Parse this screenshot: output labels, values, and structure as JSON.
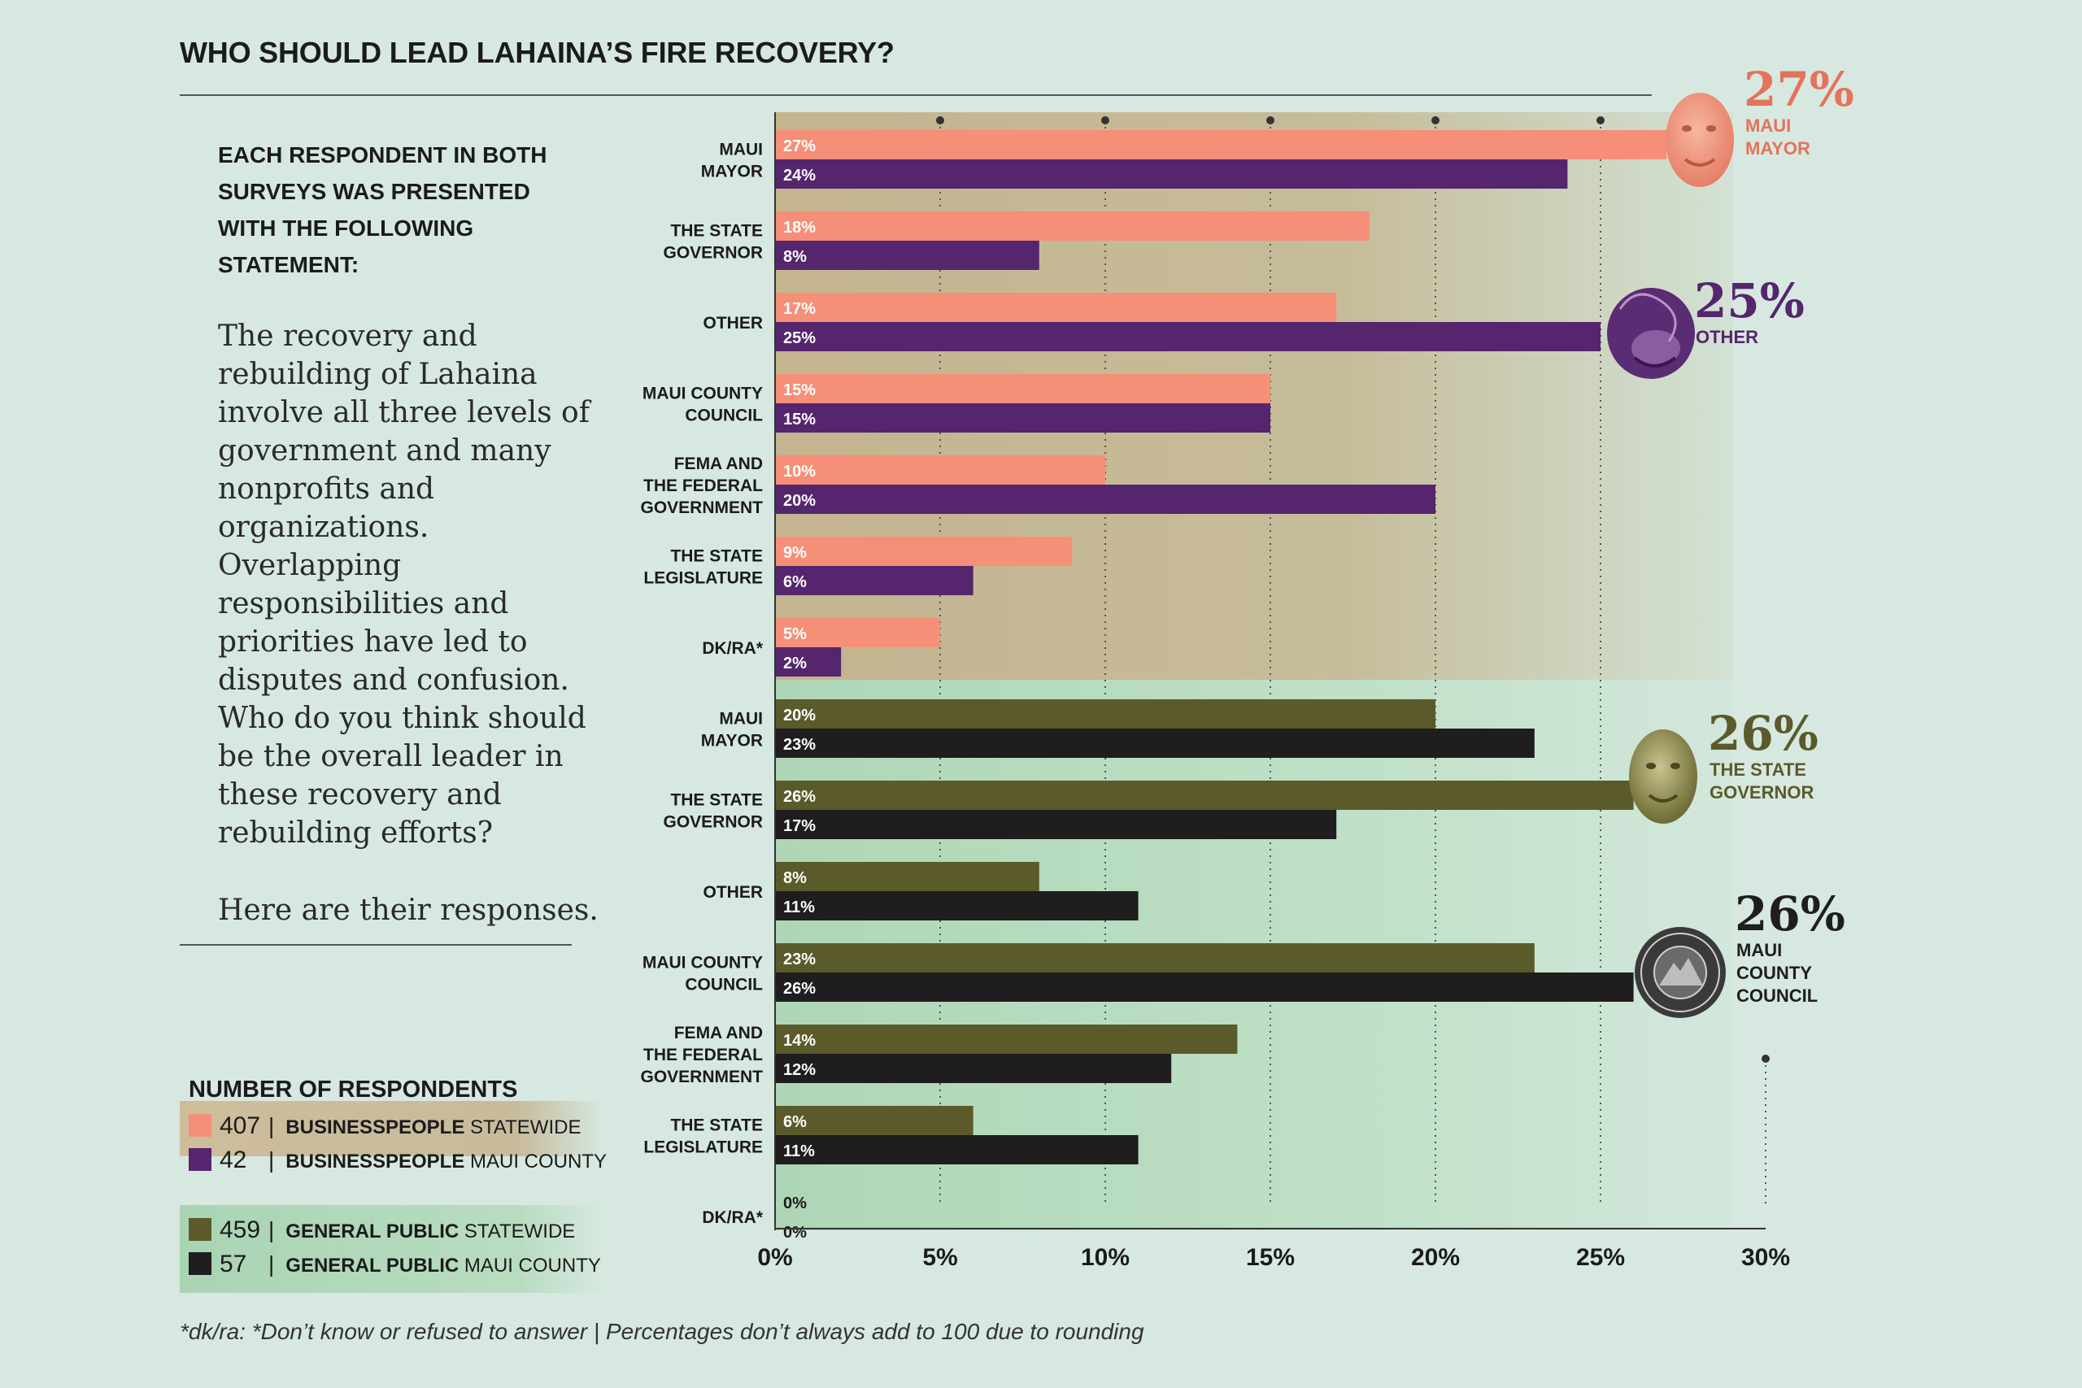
{
  "title": "WHO SHOULD LEAD LAHAINA’S FIRE RECOVERY?",
  "intro": {
    "heading_lines": [
      "EACH RESPONDENT IN BOTH",
      "SURVEYS WAS PRESENTED",
      "WITH THE FOLLOWING",
      "STATEMENT:"
    ],
    "statement": "The recovery and rebuilding of Lahaina involve all three levels of government and many nonprofits and organizations. Overlapping responsibilities and priorities have led to disputes and confusion. Who do you think should be the overall leader in these recovery and rebuilding efforts?",
    "closing": "Here are their responses."
  },
  "legend": {
    "title": "NUMBER OF RESPONDENTS",
    "items": [
      {
        "count": "407",
        "group": "BUSINESSPEOPLE",
        "scope": "STATEWIDE",
        "color": "#f58f77"
      },
      {
        "count": "42",
        "group": "BUSINESSPEOPLE",
        "scope": "MAUI COUNTY",
        "color": "#55256e"
      },
      {
        "count": "459",
        "group": "GENERAL PUBLIC",
        "scope": "STATEWIDE",
        "color": "#5b5a2a"
      },
      {
        "count": "57",
        "group": "GENERAL PUBLIC",
        "scope": "MAUI COUNTY",
        "color": "#1f1d1e"
      }
    ]
  },
  "footnote": "*dk/ra: *Don’t know or refused to answer | Percentages don’t always add to 100 due to rounding",
  "chart_data": {
    "type": "bar",
    "orientation": "horizontal",
    "xlim": [
      0,
      30
    ],
    "xticks": [
      "0%",
      "5%",
      "10%",
      "15%",
      "20%",
      "25%",
      "30%"
    ],
    "grid": "dotted vertical",
    "groups": [
      {
        "name": "Businesspeople",
        "categories": [
          [
            "MAUI",
            "MAYOR"
          ],
          [
            "THE STATE",
            "GOVERNOR"
          ],
          [
            "OTHER"
          ],
          [
            "MAUI COUNTY",
            "COUNCIL"
          ],
          [
            "FEMA AND",
            "THE FEDERAL",
            "GOVERNMENT"
          ],
          [
            "THE STATE",
            "LEGISLATURE"
          ],
          [
            "DK/RA*"
          ]
        ],
        "series": [
          {
            "legend": "BUSINESSPEOPLE STATEWIDE",
            "color": "#f58f77",
            "values": [
              27,
              18,
              17,
              15,
              10,
              9,
              5
            ],
            "labels": [
              "27%",
              "18%",
              "17%",
              "15%",
              "10%",
              "9%",
              "5%"
            ]
          },
          {
            "legend": "BUSINESSPEOPLE MAUI COUNTY",
            "color": "#55256e",
            "values": [
              24,
              8,
              25,
              15,
              20,
              6,
              2
            ],
            "labels": [
              "24%",
              "8%",
              "25%",
              "15%",
              "20%",
              "6%",
              "2%"
            ]
          }
        ]
      },
      {
        "name": "General public",
        "categories": [
          [
            "MAUI",
            "MAYOR"
          ],
          [
            "THE STATE",
            "GOVERNOR"
          ],
          [
            "OTHER"
          ],
          [
            "MAUI COUNTY",
            "COUNCIL"
          ],
          [
            "FEMA AND",
            "THE FEDERAL",
            "GOVERNMENT"
          ],
          [
            "THE STATE",
            "LEGISLATURE"
          ],
          [
            "DK/RA*"
          ]
        ],
        "series": [
          {
            "legend": "GENERAL PUBLIC STATEWIDE",
            "color": "#5b5a2a",
            "values": [
              20,
              26,
              8,
              23,
              14,
              6,
              0
            ],
            "labels": [
              "20%",
              "26%",
              "8%",
              "23%",
              "14%",
              "6%",
              "0%"
            ]
          },
          {
            "legend": "GENERAL PUBLIC MAUI COUNTY",
            "color": "#1f1d1e",
            "values": [
              23,
              17,
              11,
              26,
              12,
              11,
              0
            ],
            "labels": [
              "23%",
              "17%",
              "11%",
              "26%",
              "12%",
              "11%",
              "0%"
            ]
          }
        ]
      }
    ],
    "highlights": [
      {
        "pct": "27%",
        "name": [
          "MAUI",
          "MAYOR"
        ],
        "color": "#e5735b",
        "icon": "person-photo-icon"
      },
      {
        "pct": "25%",
        "name": [
          "OTHER"
        ],
        "color": "#55256e",
        "icon": "scribble-head-icon"
      },
      {
        "pct": "26%",
        "name": [
          "THE STATE",
          "GOVERNOR"
        ],
        "color": "#5b5a2a",
        "icon": "person-photo-icon"
      },
      {
        "pct": "26%",
        "name": [
          "MAUI",
          "COUNTY",
          "COUNCIL"
        ],
        "color": "#1f1d1e",
        "icon": "county-seal-icon"
      }
    ]
  }
}
